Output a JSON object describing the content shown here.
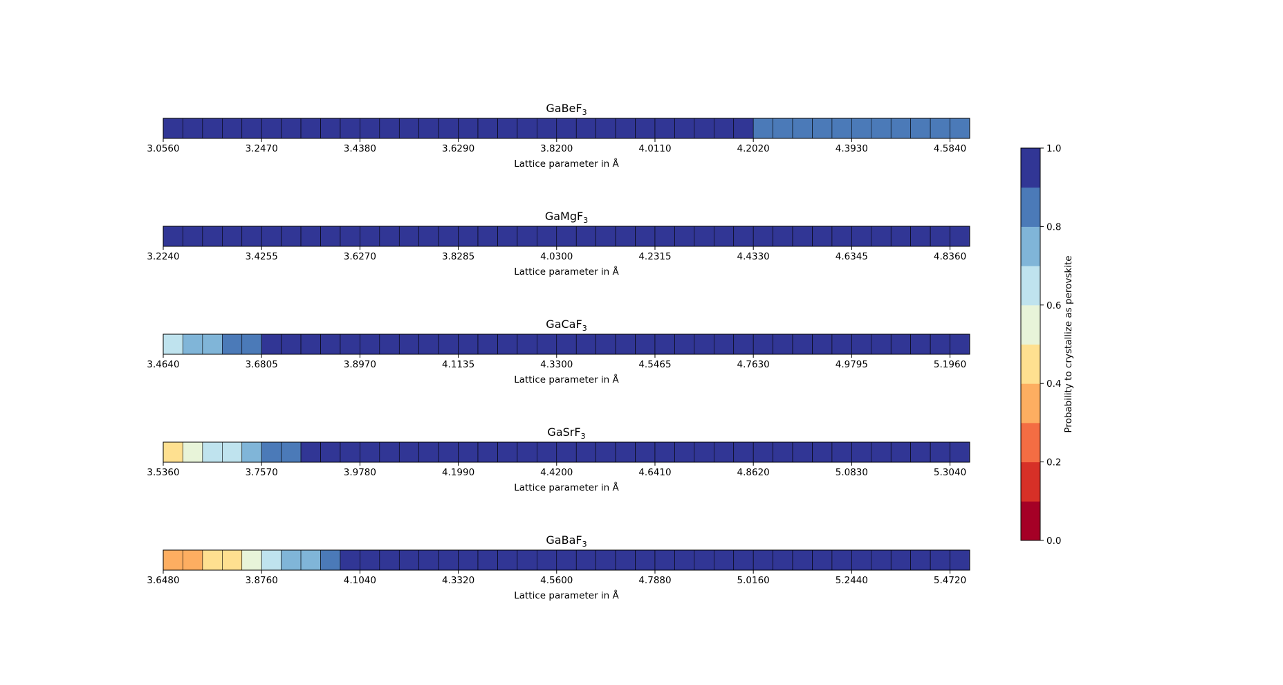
{
  "chart_data": {
    "type": "heatmap",
    "xlabel": "Lattice parameter in Å",
    "colorbar": {
      "label": "Probability to crystallize as perovskite",
      "range": [
        0.0,
        1.0
      ],
      "ticks": [
        "0.0",
        "0.2",
        "0.4",
        "0.6",
        "0.8",
        "1.0"
      ],
      "levels": [
        0.0,
        0.1,
        0.2,
        0.3,
        0.4,
        0.5,
        0.6,
        0.7,
        0.8,
        0.9,
        1.0
      ],
      "colors": [
        "#a50026",
        "#d73027",
        "#f46d43",
        "#fdae61",
        "#fee090",
        "#e8f4d9",
        "#bfe3ee",
        "#80b5d8",
        "#4b7ab8",
        "#313695"
      ]
    },
    "panels": [
      {
        "formula": "GaBeF",
        "subscript": "3",
        "tick_labels": [
          "3.0560",
          "3.2470",
          "3.4380",
          "3.6290",
          "3.8200",
          "4.0110",
          "4.2020",
          "4.3930",
          "4.5840"
        ],
        "values": [
          0.95,
          0.95,
          0.95,
          0.95,
          0.95,
          0.95,
          0.95,
          0.95,
          0.95,
          0.95,
          0.95,
          0.95,
          0.95,
          0.95,
          0.95,
          0.95,
          0.95,
          0.95,
          0.95,
          0.95,
          0.95,
          0.95,
          0.95,
          0.95,
          0.95,
          0.95,
          0.95,
          0.95,
          0.95,
          0.95,
          0.85,
          0.85,
          0.85,
          0.85,
          0.85,
          0.85,
          0.85,
          0.85,
          0.85,
          0.85,
          0.85
        ]
      },
      {
        "formula": "GaMgF",
        "subscript": "3",
        "tick_labels": [
          "3.2240",
          "3.4255",
          "3.6270",
          "3.8285",
          "4.0300",
          "4.2315",
          "4.4330",
          "4.6345",
          "4.8360"
        ],
        "values": [
          0.95,
          0.95,
          0.95,
          0.95,
          0.95,
          0.95,
          0.95,
          0.95,
          0.95,
          0.95,
          0.95,
          0.95,
          0.95,
          0.95,
          0.95,
          0.95,
          0.95,
          0.95,
          0.95,
          0.95,
          0.95,
          0.95,
          0.95,
          0.95,
          0.95,
          0.95,
          0.95,
          0.95,
          0.95,
          0.95,
          0.95,
          0.95,
          0.95,
          0.95,
          0.95,
          0.95,
          0.95,
          0.95,
          0.95,
          0.95,
          0.95
        ]
      },
      {
        "formula": "GaCaF",
        "subscript": "3",
        "tick_labels": [
          "3.4640",
          "3.6805",
          "3.8970",
          "4.1135",
          "4.3300",
          "4.5465",
          "4.7630",
          "4.9795",
          "5.1960"
        ],
        "values": [
          0.65,
          0.75,
          0.75,
          0.85,
          0.85,
          0.95,
          0.95,
          0.95,
          0.95,
          0.95,
          0.95,
          0.95,
          0.95,
          0.95,
          0.95,
          0.95,
          0.95,
          0.95,
          0.95,
          0.95,
          0.95,
          0.95,
          0.95,
          0.95,
          0.95,
          0.95,
          0.95,
          0.95,
          0.95,
          0.95,
          0.95,
          0.95,
          0.95,
          0.95,
          0.95,
          0.95,
          0.95,
          0.95,
          0.95,
          0.95,
          0.95
        ]
      },
      {
        "formula": "GaSrF",
        "subscript": "3",
        "tick_labels": [
          "3.5360",
          "3.7570",
          "3.9780",
          "4.1990",
          "4.4200",
          "4.6410",
          "4.8620",
          "5.0830",
          "5.3040"
        ],
        "values": [
          0.45,
          0.55,
          0.65,
          0.65,
          0.75,
          0.85,
          0.85,
          0.95,
          0.95,
          0.95,
          0.95,
          0.95,
          0.95,
          0.95,
          0.95,
          0.95,
          0.95,
          0.95,
          0.95,
          0.95,
          0.95,
          0.95,
          0.95,
          0.95,
          0.95,
          0.95,
          0.95,
          0.95,
          0.95,
          0.95,
          0.95,
          0.95,
          0.95,
          0.95,
          0.95,
          0.95,
          0.95,
          0.95,
          0.95,
          0.95,
          0.95
        ]
      },
      {
        "formula": "GaBaF",
        "subscript": "3",
        "tick_labels": [
          "3.6480",
          "3.8760",
          "4.1040",
          "4.3320",
          "4.5600",
          "4.7880",
          "5.0160",
          "5.2440",
          "5.4720"
        ],
        "values": [
          0.35,
          0.35,
          0.45,
          0.45,
          0.55,
          0.65,
          0.75,
          0.75,
          0.85,
          0.95,
          0.95,
          0.95,
          0.95,
          0.95,
          0.95,
          0.95,
          0.95,
          0.95,
          0.95,
          0.95,
          0.95,
          0.95,
          0.95,
          0.95,
          0.95,
          0.95,
          0.95,
          0.95,
          0.95,
          0.95,
          0.95,
          0.95,
          0.95,
          0.95,
          0.95,
          0.95,
          0.95,
          0.95,
          0.95,
          0.95,
          0.95
        ]
      }
    ]
  }
}
